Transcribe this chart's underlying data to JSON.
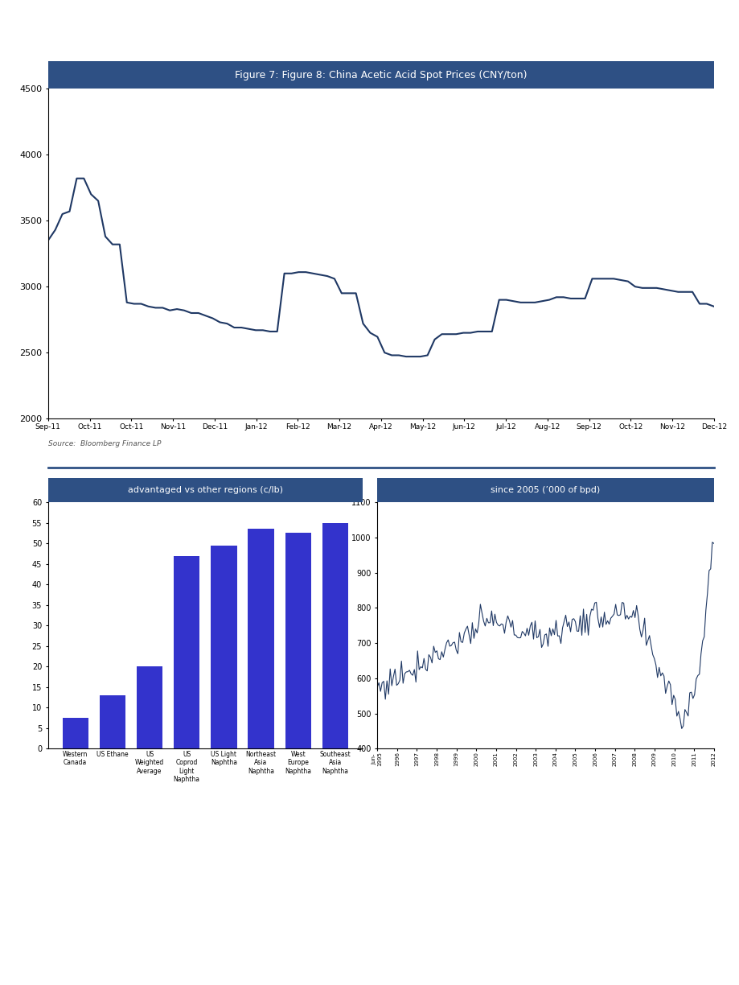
{
  "fig1_title": "Figure 7: Figure 8: China Acetic Acid Spot Prices (CNY/ton)",
  "fig1_xlabel_ticks": [
    "Sep-11",
    "Oct-11",
    "Oct-11",
    "Nov-11",
    "Dec-11",
    "Jan-12",
    "Feb-12",
    "Mar-12",
    "Apr-12",
    "May-12",
    "Jun-12",
    "Jul-12",
    "Aug-12",
    "Sep-12",
    "Oct-12",
    "Nov-12",
    "Dec-12"
  ],
  "fig1_ylim": [
    2000,
    4500
  ],
  "fig1_yticks": [
    2000,
    2500,
    3000,
    3500,
    4000,
    4500
  ],
  "fig1_data": [
    3350,
    3430,
    3550,
    3570,
    3820,
    3820,
    3700,
    3650,
    3380,
    3320,
    3320,
    2880,
    2870,
    2870,
    2850,
    2840,
    2840,
    2820,
    2830,
    2820,
    2800,
    2800,
    2780,
    2760,
    2730,
    2720,
    2690,
    2690,
    2680,
    2670,
    2670,
    2660,
    2660,
    3100,
    3100,
    3110,
    3110,
    3100,
    3090,
    3080,
    3060,
    2950,
    2950,
    2950,
    2720,
    2650,
    2620,
    2500,
    2480,
    2480,
    2470,
    2470,
    2470,
    2480,
    2600,
    2640,
    2640,
    2640,
    2650,
    2650,
    2660,
    2660,
    2660,
    2900,
    2900,
    2890,
    2880,
    2880,
    2880,
    2890,
    2900,
    2920,
    2920,
    2910,
    2910,
    2910,
    3060,
    3060,
    3060,
    3060,
    3050,
    3040,
    3000,
    2990,
    2990,
    2990,
    2980,
    2970,
    2960,
    2960,
    2960,
    2870,
    2870,
    2850
  ],
  "fig1_source": "Source:  Bloomberg Finance LP",
  "fig2_title": "advantaged vs other regions (c/lb)",
  "fig2_categories": [
    "Western\nCanada",
    "US Ethane",
    "US\nWeighted\nAverage",
    "US\nCoprod\nLight\nNaphtha",
    "US Light\nNaphtha",
    "Northeast\nAsia\nNaphtha",
    "West\nEurope\nNaphtha",
    "Southeast\nAsia\nNaphtha"
  ],
  "fig2_values": [
    7.5,
    13,
    20,
    47,
    49.5,
    53.5,
    52.5,
    55
  ],
  "fig2_ylim": [
    0,
    60
  ],
  "fig2_yticks": [
    0,
    5,
    10,
    15,
    20,
    25,
    30,
    35,
    40,
    45,
    50,
    55,
    60
  ],
  "fig2_bar_color": "#3333cc",
  "fig3_title": "since 2005 (’000 of bpd)",
  "fig3_ylim": [
    400,
    1100
  ],
  "fig3_yticks": [
    400,
    500,
    600,
    700,
    800,
    900,
    1000,
    1100
  ],
  "fig3_xlabel_ticks": [
    "Jun-\n1995",
    "1996",
    "1997",
    "1998",
    "1999",
    "2000",
    "2001",
    "2002",
    "2003",
    "2004",
    "2005",
    "2006",
    "2007",
    "2008",
    "2009",
    "2010",
    "2011",
    "2012"
  ],
  "header_bar_color": "#2e5084",
  "header_text_color": "#ffffff",
  "line_color": "#1f3864",
  "bar_color_main": "#3333cc",
  "background_color": "#ffffff",
  "divider_color": "#2e5084",
  "source_color": "#555555"
}
